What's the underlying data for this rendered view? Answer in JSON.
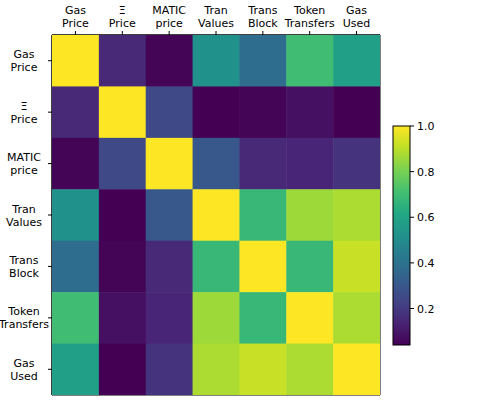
{
  "chart_data": {
    "type": "heatmap",
    "x_labels": [
      "Gas Price",
      "Ξ Price",
      "MATIC price",
      "Tran Values",
      "Trans Block",
      "Token Transfers",
      "Gas Used"
    ],
    "y_labels": [
      "Gas Price",
      "Ξ Price",
      "MATIC price",
      "Tran Values",
      "Trans Block",
      "Token Transfers",
      "Gas Used"
    ],
    "cells": [
      [
        1,
        0.15,
        0.05,
        0.52,
        0.38,
        0.7,
        0.58
      ],
      [
        0.15,
        1,
        0.25,
        0.04,
        0.05,
        0.08,
        0.04
      ],
      [
        0.05,
        0.25,
        1,
        0.3,
        0.15,
        0.14,
        0.18
      ],
      [
        0.52,
        0.04,
        0.3,
        1,
        0.68,
        0.86,
        0.88
      ],
      [
        0.38,
        0.05,
        0.15,
        0.68,
        1,
        0.68,
        0.92
      ],
      [
        0.7,
        0.08,
        0.14,
        0.86,
        0.68,
        1,
        0.88
      ],
      [
        0.58,
        0.04,
        0.18,
        0.88,
        0.92,
        0.88,
        1
      ]
    ],
    "colorbar": {
      "range": [
        0.04,
        1
      ],
      "ticks": [
        0.2,
        0.4,
        0.6,
        0.8,
        {
          "value": 1,
          "label": "1.0"
        }
      ]
    },
    "color": "viridis"
  }
}
